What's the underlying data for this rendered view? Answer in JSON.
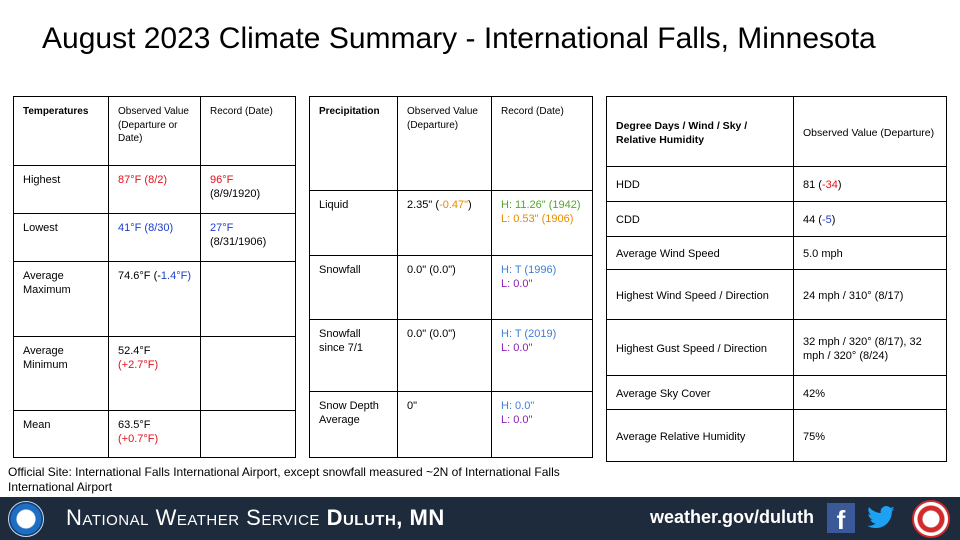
{
  "title": "August 2023 Climate Summary - International Falls, Minnesota",
  "temperatures": {
    "headers": [
      "Temperatures",
      "Observed Value (Departure or Date)",
      "Record (Date)"
    ],
    "rows": [
      {
        "label": "Highest",
        "observed": "87°F (8/2)",
        "record_1": "96°F",
        "record_2": "(8/9/1920)"
      },
      {
        "label": "Lowest",
        "observed": "41°F (8/30)",
        "record_1": "27°F",
        "record_2": "(8/31/1906)"
      },
      {
        "label": "Average Maximum",
        "observed_1": "74.6°F (-",
        "observed_2": "1.4°F)"
      },
      {
        "label": "Average Minimum",
        "observed_1": "52.4°F",
        "observed_2": "(+2.7°F)"
      },
      {
        "label": "Mean",
        "observed_1": "63.5°F",
        "observed_2": "(+0.7°F)"
      }
    ]
  },
  "precipitation": {
    "headers": [
      "Precipitation",
      "Observed Value (Departure)",
      "Record (Date)"
    ],
    "rows": [
      {
        "label": "Liquid",
        "observed_1": "2.35\" (",
        "observed_2": "-0.47\"",
        "observed_3": ")",
        "record_high": "H: 11.26\" (1942)",
        "record_low": "L: 0.53\" (1906)"
      },
      {
        "label": "Snowfall",
        "observed": "0.0\" (0.0\")",
        "record_high": "H: T (1996)",
        "record_low": "L: 0.0\""
      },
      {
        "label": "Snowfall since 7/1",
        "observed": "0.0\" (0.0\")",
        "record_high": "H: T (2019)",
        "record_low": "L: 0.0\""
      },
      {
        "label": "Snow Depth Average",
        "observed": "0\"",
        "record_high": "H: 0.0\"",
        "record_low": "L: 0.0\""
      }
    ]
  },
  "degree_days": {
    "headers": [
      "Degree Days / Wind / Sky / Relative Humidity",
      "Observed Value (Departure)"
    ],
    "rows": [
      {
        "label": "HDD",
        "value_1": "81 (",
        "value_2": "-34",
        "value_3": ")"
      },
      {
        "label": "CDD",
        "value_1": "44 (",
        "value_2": "-5",
        "value_3": ")"
      },
      {
        "label": "Average Wind Speed",
        "value": "5.0 mph"
      },
      {
        "label": "Highest Wind Speed / Direction",
        "value": "24 mph / 310° (8/17)"
      },
      {
        "label": "Highest Gust Speed / Direction",
        "value": "32 mph / 320° (8/17), 32 mph / 320° (8/24)"
      },
      {
        "label": "Average Sky Cover",
        "value": "42%"
      },
      {
        "label": "Average Relative Humidity",
        "value": "75%"
      }
    ]
  },
  "note": "Official Site: International Falls International Airport, except snowfall measured ~2N of International Falls International Airport",
  "footer": {
    "office_prefix": "National Weather Service",
    "office_name": "Duluth, MN",
    "website": "weather.gov/duluth",
    "facebook_glyph": "f",
    "icons": [
      "noaa-logo",
      "facebook-icon",
      "twitter-icon",
      "nws-logo"
    ]
  },
  "colors": {
    "record_high": "#e0111a",
    "record_low": "#1f3dcc",
    "departure_negative_precip": "#e68a00",
    "precip_record_high": "#54a62b",
    "snow_record_high": "#3f7fd6",
    "snow_record_low": "#8b1fb3",
    "footer_bg": "#1e2b3c"
  }
}
